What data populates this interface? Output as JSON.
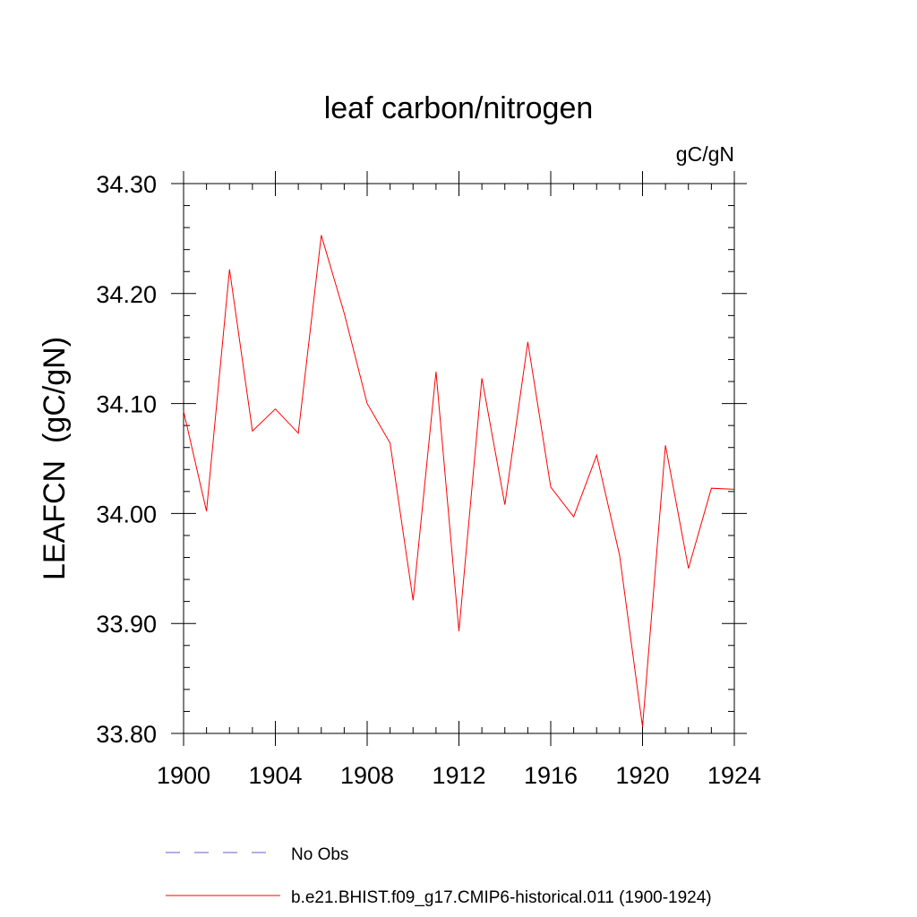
{
  "chart_data": {
    "type": "line",
    "title": "leaf carbon/nitrogen",
    "units_label": "gC/gN",
    "ylabel": "LEAFCN  (gC/gN)",
    "xlabel": "",
    "xlim": [
      1900,
      1924
    ],
    "ylim": [
      33.8,
      34.3
    ],
    "x_ticks": [
      1900,
      1904,
      1908,
      1912,
      1916,
      1920,
      1924
    ],
    "x_tick_labels": [
      "1900",
      "1904",
      "1908",
      "1912",
      "1916",
      "1920",
      "1924"
    ],
    "y_ticks": [
      33.8,
      33.9,
      34.0,
      34.1,
      34.2,
      34.3
    ],
    "y_tick_labels": [
      "33.80",
      "33.90",
      "34.00",
      "34.10",
      "34.20",
      "34.30"
    ],
    "grid": false,
    "legend_position": "bottom",
    "legend": [
      {
        "label": "No Obs",
        "color": "#6a5acd",
        "style": "dashed"
      },
      {
        "label": "b.e21.BHIST.f09_g17.CMIP6-historical.011 (1900-1924)",
        "color": "#ff0000",
        "style": "solid"
      }
    ],
    "series": [
      {
        "name": "b.e21.BHIST.f09_g17.CMIP6-historical.011 (1900-1924)",
        "color": "#ff0000",
        "x": [
          1900,
          1901,
          1902,
          1903,
          1904,
          1905,
          1906,
          1907,
          1908,
          1909,
          1910,
          1911,
          1912,
          1913,
          1914,
          1915,
          1916,
          1917,
          1918,
          1919,
          1920,
          1921,
          1922,
          1923,
          1924
        ],
        "values": [
          34.093,
          34.002,
          34.222,
          34.075,
          34.095,
          34.073,
          34.253,
          34.182,
          34.1,
          34.064,
          33.921,
          34.129,
          33.893,
          34.123,
          34.008,
          34.156,
          34.024,
          33.997,
          34.053,
          33.962,
          33.806,
          34.062,
          33.95,
          34.023,
          34.022
        ]
      }
    ]
  }
}
